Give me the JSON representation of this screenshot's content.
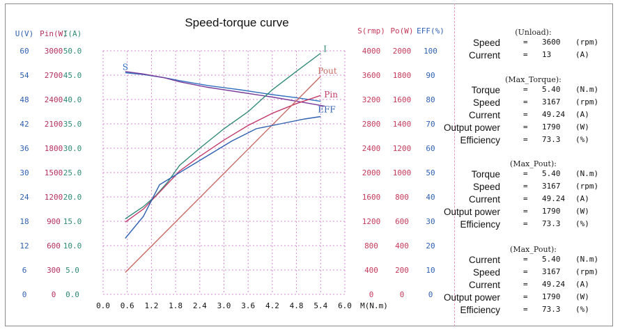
{
  "chart_data": {
    "type": "line",
    "title": "Speed-torque curve",
    "xlabel": "M(N.m)",
    "x_ticks": [
      "0.0",
      "0.6",
      "1.2",
      "1.8",
      "2.4",
      "3.0",
      "3.6",
      "4.2",
      "4.8",
      "5.4",
      "6.0"
    ],
    "xlim": [
      0,
      6
    ],
    "left_axes": [
      {
        "header": "U(V)",
        "color": "#2f5fb0",
        "ticks": [
          "60",
          "54",
          "48",
          "42",
          "36",
          "30",
          "24",
          "18",
          "12",
          "6",
          "0"
        ]
      },
      {
        "header": "Pin(W)",
        "color": "#b5305e",
        "ticks": [
          "3000",
          "2700",
          "2400",
          "2100",
          "1800",
          "1500",
          "1200",
          "900",
          "600",
          "300",
          "0"
        ]
      },
      {
        "header": "I(A)",
        "color": "#2f8a75",
        "ticks": [
          "50.0",
          "45.0",
          "40.0",
          "35.0",
          "30.0",
          "25.0",
          "20.0",
          "15.0",
          "10.0",
          "5.0",
          "0.0"
        ]
      }
    ],
    "right_axes": [
      {
        "header": "S(rmp)",
        "color": "#c43a5a",
        "ticks": [
          "4000",
          "3600",
          "3200",
          "2800",
          "2400",
          "2000",
          "1600",
          "1200",
          "800",
          "400",
          "0"
        ]
      },
      {
        "header": "Po(W)",
        "color": "#c43a5a",
        "ticks": [
          "2000",
          "1800",
          "1600",
          "1400",
          "1200",
          "1000",
          "800",
          "600",
          "400",
          "200",
          "0"
        ]
      },
      {
        "header": "EFF(%)",
        "color": "#2f5fb0",
        "ticks": [
          "100",
          "90",
          "80",
          "70",
          "60",
          "50",
          "40",
          "30",
          "20",
          "10",
          "0"
        ]
      }
    ],
    "series": [
      {
        "name": "S",
        "label": "S",
        "color": "#2f6fc0",
        "axis": "S(rmp)",
        "x": [
          0.55,
          1.0,
          1.5,
          1.9,
          2.6,
          3.4,
          4.2,
          4.8,
          5.4
        ],
        "y": [
          3640,
          3610,
          3560,
          3510,
          3430,
          3360,
          3280,
          3230,
          3170
        ]
      },
      {
        "name": "U",
        "label": "",
        "color": "#7a3a9a",
        "axis": "S(rmp)",
        "x": [
          0.55,
          1.0,
          1.5,
          1.9,
          2.6,
          3.4,
          4.2,
          5.0,
          5.5
        ],
        "y": [
          3660,
          3620,
          3560,
          3490,
          3400,
          3320,
          3240,
          3150,
          3090
        ]
      },
      {
        "name": "I",
        "label": "I",
        "color": "#2f8a75",
        "axis": "I(A)",
        "x": [
          0.55,
          1.0,
          1.3,
          1.6,
          1.9,
          2.4,
          3.0,
          3.6,
          4.2,
          4.8,
          5.4
        ],
        "y": [
          15.5,
          18.0,
          20.2,
          23.0,
          26.5,
          30.0,
          34.0,
          37.5,
          42.0,
          45.8,
          49.5
        ]
      },
      {
        "name": "Pin",
        "label": "Pin",
        "color": "#c23b6a",
        "axis": "Pin(W)",
        "x": [
          0.55,
          1.0,
          1.5,
          1.9,
          2.4,
          3.0,
          3.6,
          4.2,
          4.8,
          5.4
        ],
        "y": [
          890,
          1050,
          1310,
          1520,
          1700,
          1900,
          2080,
          2230,
          2350,
          2450
        ]
      },
      {
        "name": "Pout",
        "label": "Pout",
        "color": "#c86a64",
        "axis": "Po(W)",
        "x": [
          0.55,
          5.4
        ],
        "y": [
          180,
          1790
        ]
      },
      {
        "name": "EFF",
        "label": "EFF",
        "color": "#2f5fb0",
        "axis": "EFF(%)",
        "x": [
          0.55,
          1.0,
          1.4,
          1.7,
          2.1,
          2.6,
          3.2,
          3.8,
          4.4,
          5.0,
          5.4
        ],
        "y": [
          23,
          32,
          45,
          48,
          52,
          57,
          63,
          68,
          70,
          72,
          73
        ]
      }
    ]
  },
  "panels": [
    {
      "title": "(Unload):",
      "rows": [
        {
          "label": "Speed",
          "eq": "=",
          "value": "3600",
          "unit": "(rpm)"
        },
        {
          "label": "Current",
          "eq": "=",
          "value": "13",
          "unit": "(A)"
        }
      ]
    },
    {
      "title": "(Max_Torque):",
      "rows": [
        {
          "label": "Torque",
          "eq": "=",
          "value": "5.40",
          "unit": "(N.m)"
        },
        {
          "label": "Speed",
          "eq": "=",
          "value": "3167",
          "unit": "(rpm)"
        },
        {
          "label": "Current",
          "eq": "=",
          "value": "49.24",
          "unit": "(A)"
        },
        {
          "label": "Output power",
          "eq": "=",
          "value": "1790",
          "unit": "(W)"
        },
        {
          "label": "Efficiency",
          "eq": "=",
          "value": "73.3",
          "unit": "(%)"
        }
      ]
    },
    {
      "title": "(Max_Pout):",
      "rows": [
        {
          "label": "Torque",
          "eq": "=",
          "value": "5.40",
          "unit": "(N.m)"
        },
        {
          "label": "Speed",
          "eq": "=",
          "value": "3167",
          "unit": "(rpm)"
        },
        {
          "label": "Current",
          "eq": "=",
          "value": "49.24",
          "unit": "(A)"
        },
        {
          "label": "Output power",
          "eq": "=",
          "value": "1790",
          "unit": "(W)"
        },
        {
          "label": "Efficiency",
          "eq": "=",
          "value": "73.3",
          "unit": "(%)"
        }
      ]
    },
    {
      "title": "(Max_Pout):",
      "rows": [
        {
          "label": "Current",
          "eq": "=",
          "value": "5.40",
          "unit": "(N.m)"
        },
        {
          "label": "Speed",
          "eq": "=",
          "value": "3167",
          "unit": "(rpm)"
        },
        {
          "label": "Current",
          "eq": "=",
          "value": "49.24",
          "unit": "(A)"
        },
        {
          "label": "Output power",
          "eq": "=",
          "value": "1790",
          "unit": "(W)"
        },
        {
          "label": "Efficiency",
          "eq": "=",
          "value": "73.3",
          "unit": "(%)"
        }
      ]
    }
  ]
}
